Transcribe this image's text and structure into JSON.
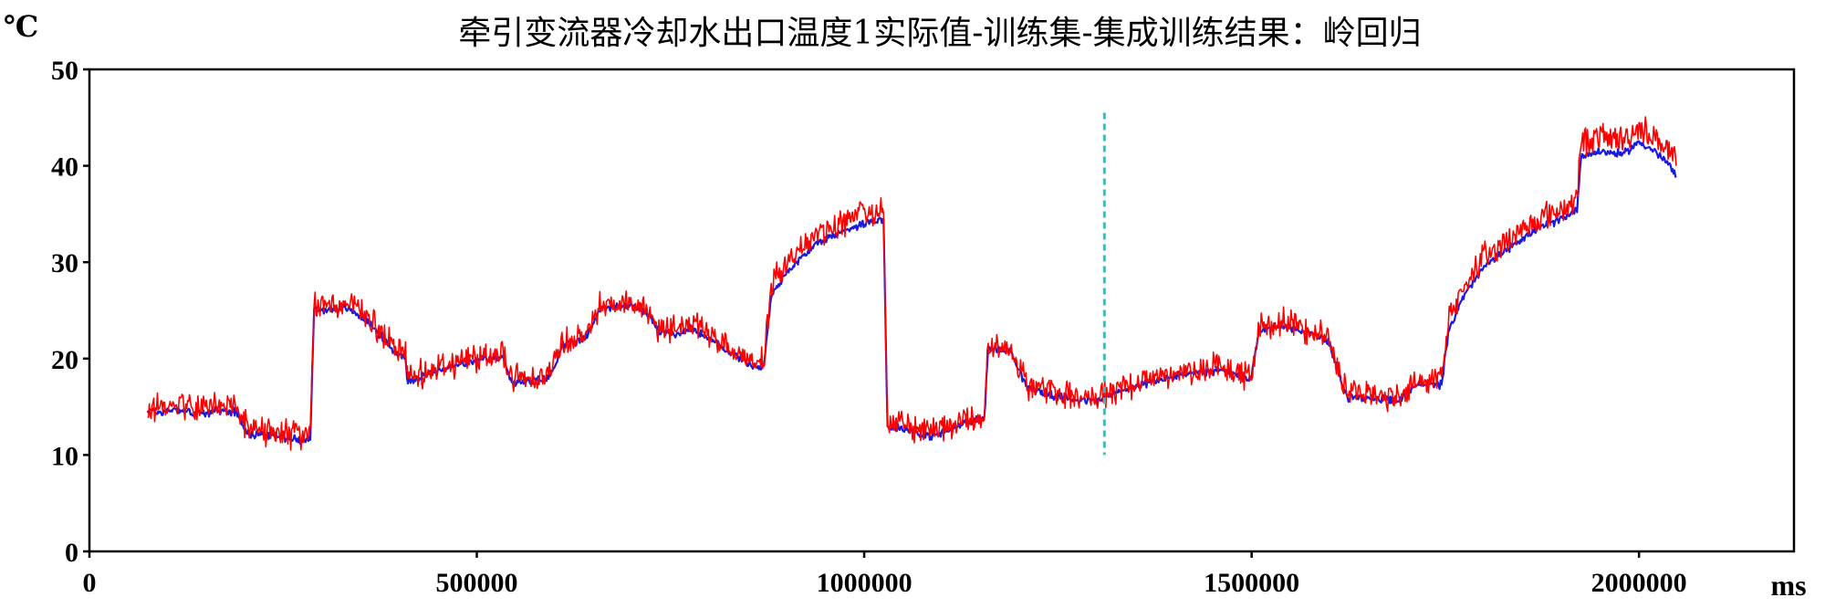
{
  "chart_data": {
    "type": "line",
    "title": "牵引变流器冷却水出口温度1实际值-训练集-集成训练结果：岭回归",
    "ylabel": "℃",
    "xlabel": "ms",
    "xlim": [
      0,
      2200000
    ],
    "ylim": [
      0,
      50
    ],
    "x_ticks": [
      {
        "value": 0,
        "label": "0"
      },
      {
        "value": 500000,
        "label": "500000"
      },
      {
        "value": 1000000,
        "label": "1000000"
      },
      {
        "value": 1500000,
        "label": "1500000"
      },
      {
        "value": 2000000,
        "label": "2000000"
      }
    ],
    "y_ticks": [
      {
        "value": 0,
        "label": "0"
      },
      {
        "value": 10,
        "label": "10"
      },
      {
        "value": 20,
        "label": "20"
      },
      {
        "value": 30,
        "label": "30"
      },
      {
        "value": 40,
        "label": "40"
      },
      {
        "value": 50,
        "label": "50"
      }
    ],
    "grid": false,
    "colors": {
      "actual": "#1a1adc",
      "predicted": "#ff0000",
      "divider": "#29c4cc",
      "axis": "#000000"
    },
    "divider": {
      "x": 1310000,
      "y_range": [
        10,
        45.5
      ]
    },
    "series": [
      {
        "color": "#1a1adc",
        "noise": 0.5,
        "x": [
          75000,
          90000,
          110000,
          140000,
          170000,
          190000,
          205000,
          230000,
          255000,
          285000,
          290000,
          300000,
          330000,
          355000,
          375000,
          395000,
          408000,
          410000,
          430000,
          460000,
          490000,
          520000,
          535000,
          545000,
          570000,
          585000,
          590000,
          600000,
          610000,
          620000,
          640000,
          660000,
          700000,
          720000,
          735000,
          760000,
          775000,
          800000,
          830000,
          855000,
          870000,
          880000,
          900000,
          940000,
          980000,
          1010000,
          1025000,
          1030000,
          1040000,
          1060000,
          1080000,
          1100000,
          1120000,
          1140000,
          1155000,
          1160000,
          1170000,
          1190000,
          1210000,
          1240000,
          1270000,
          1300000,
          1320000,
          1345000,
          1380000,
          1420000,
          1440000,
          1460000,
          1480000,
          1495000,
          1500000,
          1510000,
          1540000,
          1570000,
          1600000,
          1620000,
          1625000,
          1640000,
          1660000,
          1690000,
          1710000,
          1720000,
          1745000,
          1755000,
          1770000,
          1800000,
          1840000,
          1870000,
          1900000,
          1920000,
          1925000,
          1950000,
          1980000,
          2000000,
          2020000,
          2040000,
          2048000
        ],
        "y": [
          14.7,
          14.4,
          14.8,
          14.3,
          14.6,
          14.5,
          12.2,
          12.1,
          11.8,
          11.5,
          25.2,
          25.0,
          25.3,
          24.2,
          22.5,
          20.6,
          20.3,
          17.6,
          18.2,
          19.0,
          19.6,
          20.0,
          20.1,
          17.5,
          17.6,
          17.9,
          17.8,
          19.0,
          21.4,
          21.5,
          22.0,
          25.3,
          25.5,
          24.8,
          22.8,
          22.5,
          23.3,
          22.0,
          20.5,
          19.3,
          19.0,
          26.5,
          29.0,
          32.0,
          33.5,
          34.3,
          34.5,
          12.8,
          12.9,
          12.6,
          11.9,
          12.2,
          13.0,
          13.5,
          13.8,
          21.3,
          21.0,
          20.7,
          17.0,
          16.2,
          15.8,
          15.6,
          16.3,
          17.0,
          17.8,
          18.5,
          18.5,
          18.8,
          18.2,
          18.0,
          18.2,
          23.0,
          23.4,
          22.8,
          21.8,
          16.5,
          16.0,
          16.0,
          15.8,
          15.6,
          17.2,
          17.4,
          17.3,
          23.0,
          26.0,
          29.5,
          32.0,
          33.5,
          34.5,
          35.5,
          41.0,
          41.5,
          41.2,
          42.5,
          41.5,
          40.0,
          38.8
        ]
      },
      {
        "color": "#ff0000",
        "noise": 1.8,
        "x": [
          75000,
          90000,
          110000,
          140000,
          170000,
          190000,
          205000,
          230000,
          255000,
          285000,
          290000,
          300000,
          330000,
          355000,
          375000,
          395000,
          408000,
          410000,
          430000,
          460000,
          490000,
          520000,
          535000,
          545000,
          570000,
          585000,
          590000,
          600000,
          610000,
          620000,
          640000,
          660000,
          700000,
          720000,
          735000,
          760000,
          775000,
          800000,
          830000,
          855000,
          870000,
          880000,
          900000,
          940000,
          980000,
          1010000,
          1025000,
          1030000,
          1040000,
          1060000,
          1080000,
          1100000,
          1120000,
          1140000,
          1155000,
          1160000,
          1170000,
          1190000,
          1210000,
          1240000,
          1270000,
          1300000,
          1320000,
          1345000,
          1380000,
          1420000,
          1440000,
          1460000,
          1480000,
          1495000,
          1500000,
          1510000,
          1540000,
          1570000,
          1600000,
          1620000,
          1625000,
          1640000,
          1660000,
          1690000,
          1710000,
          1720000,
          1745000,
          1755000,
          1770000,
          1800000,
          1840000,
          1870000,
          1900000,
          1920000,
          1925000,
          1950000,
          1980000,
          2000000,
          2020000,
          2040000,
          2048000
        ],
        "y": [
          14.9,
          14.7,
          15.2,
          14.8,
          15.0,
          14.9,
          12.6,
          12.5,
          12.2,
          11.9,
          25.6,
          25.4,
          25.7,
          24.6,
          22.9,
          21.0,
          20.7,
          18.0,
          18.6,
          19.4,
          20.0,
          20.4,
          20.5,
          17.9,
          18.0,
          18.3,
          18.2,
          19.4,
          21.8,
          21.9,
          22.4,
          25.7,
          25.9,
          25.2,
          23.2,
          22.9,
          23.7,
          22.4,
          20.9,
          19.7,
          19.4,
          27.5,
          30.0,
          33.0,
          34.5,
          35.3,
          35.5,
          13.2,
          13.3,
          13.0,
          12.3,
          12.6,
          13.4,
          13.9,
          14.2,
          21.7,
          21.4,
          21.1,
          17.4,
          16.6,
          16.2,
          16.0,
          16.7,
          17.4,
          18.2,
          18.9,
          18.9,
          19.2,
          18.6,
          18.4,
          18.6,
          23.4,
          23.8,
          23.2,
          22.2,
          16.9,
          16.4,
          16.4,
          16.2,
          16.0,
          17.6,
          17.8,
          17.7,
          24.0,
          27.0,
          30.5,
          33.0,
          34.5,
          35.5,
          36.5,
          42.5,
          43.0,
          42.7,
          44.0,
          43.0,
          41.5,
          40.0
        ]
      }
    ]
  }
}
